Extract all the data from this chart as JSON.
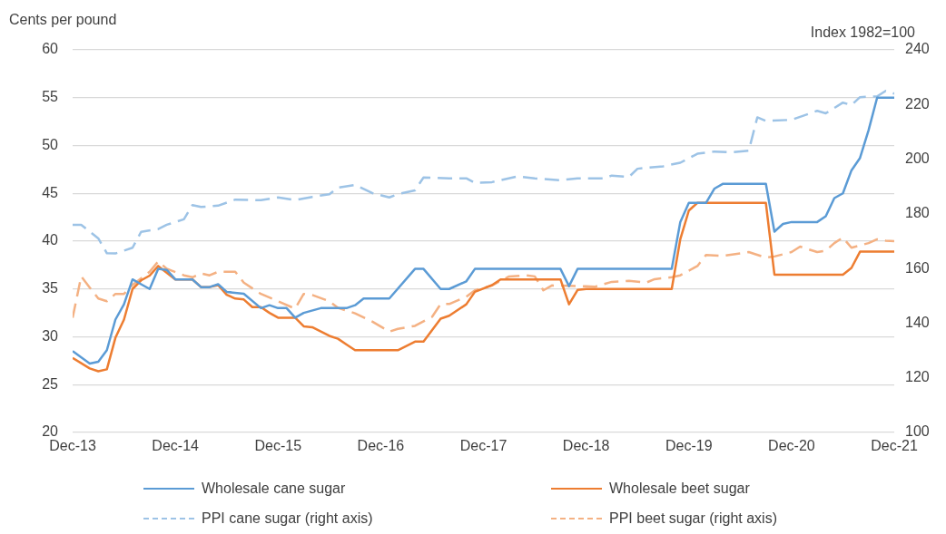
{
  "chart_data": {
    "type": "line",
    "ylabel": "Cents per pound",
    "y2label": "Index 1982=100",
    "xlim": [
      "2013-12",
      "2021-12"
    ],
    "xticks": [
      {
        "value": "2013-12",
        "label": "Dec-13"
      },
      {
        "value": "2014-12",
        "label": "Dec-14"
      },
      {
        "value": "2015-12",
        "label": "Dec-15"
      },
      {
        "value": "2016-12",
        "label": "Dec-16"
      },
      {
        "value": "2017-12",
        "label": "Dec-17"
      },
      {
        "value": "2018-12",
        "label": "Dec-18"
      },
      {
        "value": "2019-12",
        "label": "Dec-19"
      },
      {
        "value": "2020-12",
        "label": "Dec-20"
      },
      {
        "value": "2021-12",
        "label": "Dec-21"
      }
    ],
    "ylim": [
      20,
      60
    ],
    "yticks": [
      20,
      25,
      30,
      35,
      40,
      45,
      50,
      55,
      60
    ],
    "y2lim": [
      100,
      240
    ],
    "y2ticks": [
      100,
      120,
      140,
      160,
      180,
      200,
      220,
      240
    ],
    "grid": "y",
    "legend": "bottom",
    "marker": "none",
    "series": [
      {
        "name": "Wholesale cane sugar",
        "color": "#5b9bd5",
        "line_style": "solid",
        "x": [
          "2013-12",
          "2014-02",
          "2014-03",
          "2014-04",
          "2014-05",
          "2014-06",
          "2014-07",
          "2014-08",
          "2014-09",
          "2014-10",
          "2014-11",
          "2014-12",
          "2015-02",
          "2015-03",
          "2015-04",
          "2015-05",
          "2015-06",
          "2015-08",
          "2015-10",
          "2015-11",
          "2015-12",
          "2016-01",
          "2016-02",
          "2016-03",
          "2016-05",
          "2016-08",
          "2016-09",
          "2016-10",
          "2017-01",
          "2017-04",
          "2017-05",
          "2017-07",
          "2017-08",
          "2017-10",
          "2017-11",
          "2018-09",
          "2018-10",
          "2018-11",
          "2019-10",
          "2019-11",
          "2019-12",
          "2020-02",
          "2020-03",
          "2020-04",
          "2020-09",
          "2020-10",
          "2020-11",
          "2020-12",
          "2021-03",
          "2021-04",
          "2021-05",
          "2021-06",
          "2021-07",
          "2021-08",
          "2021-09",
          "2021-10",
          "2021-12"
        ],
        "values": [
          28.5,
          27.2,
          27.4,
          28.6,
          31.8,
          33.4,
          36,
          35.5,
          35,
          37.1,
          37,
          36,
          36,
          35.2,
          35.2,
          35.5,
          34.7,
          34.5,
          33,
          33.3,
          33,
          33,
          32,
          32.5,
          33,
          33,
          33.3,
          34,
          34,
          37.1,
          37.1,
          35,
          35,
          35.8,
          37.1,
          37.1,
          35.3,
          37.1,
          37.1,
          42,
          44,
          44,
          45.5,
          46,
          46,
          41,
          41.8,
          42,
          42,
          42.6,
          44.5,
          45,
          47.4,
          48.7,
          51.6,
          55,
          55
        ]
      },
      {
        "name": "Wholesale beet sugar",
        "color": "#ed7d31",
        "line_style": "solid",
        "x": [
          "2013-12",
          "2014-02",
          "2014-03",
          "2014-04",
          "2014-05",
          "2014-06",
          "2014-07",
          "2014-08",
          "2014-09",
          "2014-10",
          "2014-12",
          "2015-02",
          "2015-03",
          "2015-04",
          "2015-05",
          "2015-06",
          "2015-07",
          "2015-08",
          "2015-09",
          "2015-10",
          "2015-11",
          "2015-12",
          "2016-02",
          "2016-03",
          "2016-04",
          "2016-06",
          "2016-07",
          "2016-08",
          "2016-09",
          "2017-02",
          "2017-04",
          "2017-05",
          "2017-07",
          "2017-08",
          "2017-10",
          "2017-11",
          "2018-01",
          "2018-02",
          "2018-09",
          "2018-10",
          "2018-11",
          "2018-12",
          "2019-10",
          "2019-11",
          "2019-12",
          "2020-01",
          "2020-09",
          "2020-10",
          "2021-06",
          "2021-07",
          "2021-08",
          "2021-12"
        ],
        "values": [
          27.8,
          26.7,
          26.4,
          26.6,
          29.9,
          31.8,
          35,
          35.9,
          36.4,
          37.4,
          36,
          36,
          35.2,
          35.2,
          35.4,
          34.4,
          34,
          33.9,
          33.1,
          33.1,
          32.5,
          32,
          32,
          31.1,
          31,
          30.1,
          29.8,
          29.2,
          28.6,
          28.6,
          29.5,
          29.5,
          31.9,
          32.2,
          33.4,
          34.7,
          35.4,
          36,
          36,
          33.4,
          34.9,
          35,
          35,
          40.2,
          43.2,
          44,
          44,
          36.5,
          36.5,
          37.2,
          38.9,
          38.9
        ]
      },
      {
        "name": "PPI cane sugar (right axis)",
        "color": "#9dc3e6",
        "line_style": "dashed",
        "axis": "y2",
        "x": [
          "2013-12",
          "2014-01",
          "2014-03",
          "2014-04",
          "2014-05",
          "2014-07",
          "2014-08",
          "2014-10",
          "2014-11",
          "2015-01",
          "2015-02",
          "2015-03",
          "2015-05",
          "2015-07",
          "2015-10",
          "2015-12",
          "2016-02",
          "2016-04",
          "2016-06",
          "2016-07",
          "2016-09",
          "2016-11",
          "2017-01",
          "2017-02",
          "2017-04",
          "2017-05",
          "2017-08",
          "2017-10",
          "2017-11",
          "2018-01",
          "2018-04",
          "2018-06",
          "2018-09",
          "2018-11",
          "2019-02",
          "2019-03",
          "2019-05",
          "2019-06",
          "2019-09",
          "2019-11",
          "2020-01",
          "2020-03",
          "2020-05",
          "2020-07",
          "2020-08",
          "2020-09",
          "2020-12",
          "2021-03",
          "2021-04",
          "2021-06",
          "2021-07",
          "2021-08",
          "2021-10",
          "2021-11",
          "2021-12"
        ],
        "values": [
          176,
          176,
          171,
          165.6,
          165.5,
          167.6,
          173.4,
          174.4,
          176,
          178,
          183.2,
          182.5,
          183,
          185.2,
          185,
          186,
          185,
          186.2,
          187.2,
          189.6,
          190.6,
          187.6,
          186,
          187.2,
          188.6,
          193.3,
          193,
          193,
          191.3,
          191.6,
          193.7,
          193,
          192.3,
          193,
          193,
          194,
          193.5,
          196.5,
          197.4,
          198.7,
          202,
          202.8,
          202.5,
          203.1,
          215.3,
          214,
          214.4,
          217.7,
          216.8,
          220.7,
          219.8,
          222.7,
          223,
          225,
          224
        ]
      },
      {
        "name": "PPI beet sugar (right axis)",
        "color": "#f4b183",
        "line_style": "dashed",
        "axis": "y2",
        "x": [
          "2013-12",
          "2014-01",
          "2014-02",
          "2014-03",
          "2014-04",
          "2014-05",
          "2014-06",
          "2014-07",
          "2014-09",
          "2014-10",
          "2014-11",
          "2015-01",
          "2015-02",
          "2015-03",
          "2015-04",
          "2015-05",
          "2015-07",
          "2015-08",
          "2015-10",
          "2015-12",
          "2016-02",
          "2016-03",
          "2016-04",
          "2016-06",
          "2016-07",
          "2016-09",
          "2016-11",
          "2017-01",
          "2017-02",
          "2017-04",
          "2017-06",
          "2017-07",
          "2017-08",
          "2017-10",
          "2017-11",
          "2018-01",
          "2018-03",
          "2018-05",
          "2018-06",
          "2018-07",
          "2018-08",
          "2018-12",
          "2019-01",
          "2019-03",
          "2019-05",
          "2019-07",
          "2019-08",
          "2019-10",
          "2019-11",
          "2020-01",
          "2020-02",
          "2020-04",
          "2020-07",
          "2020-09",
          "2020-10",
          "2020-12",
          "2021-01",
          "2021-03",
          "2021-04",
          "2021-05",
          "2021-06",
          "2021-07",
          "2021-09",
          "2021-10",
          "2021-11",
          "2021-12"
        ],
        "values": [
          142,
          157.1,
          153,
          149,
          148,
          150.7,
          150.7,
          154,
          158.8,
          162.6,
          159.9,
          157.5,
          156.8,
          158.2,
          157.5,
          158.8,
          158.8,
          154.8,
          150.7,
          148,
          145.3,
          150.7,
          150.3,
          148,
          145.6,
          143.6,
          140.6,
          136.9,
          137.9,
          139,
          142.3,
          147,
          147,
          149.7,
          152,
          153.8,
          157.1,
          157.5,
          157.1,
          152,
          153.8,
          153.5,
          153.3,
          155.1,
          155.5,
          154.8,
          156.1,
          156.8,
          157.5,
          160.9,
          164.9,
          164.6,
          166,
          164,
          164.4,
          166,
          168,
          166,
          166.5,
          169.3,
          171.3,
          167.6,
          169.3,
          170.7,
          170.2,
          170
        ]
      }
    ]
  }
}
